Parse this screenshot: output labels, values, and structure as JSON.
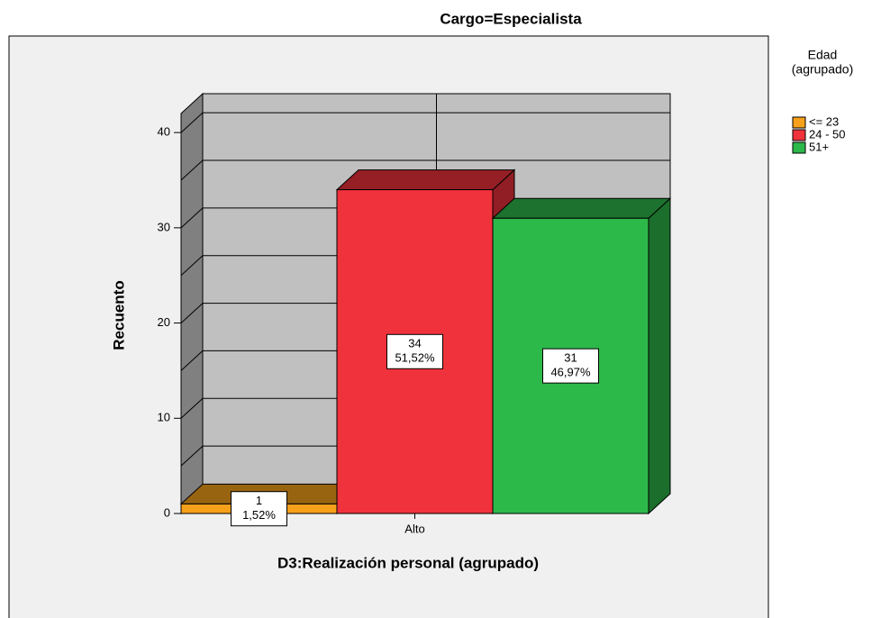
{
  "chart_data": {
    "type": "bar3d",
    "title": "Cargo=Especialista",
    "x_label": "D3:Realización personal (agrupado)",
    "y_label": "Recuento",
    "categories": [
      "Alto"
    ],
    "legend_title": [
      "Edad",
      "(agrupado)"
    ],
    "series": [
      {
        "name": "<= 23",
        "color": "#f7a11a",
        "values": [
          1
        ],
        "percent_labels": [
          "1,52%"
        ]
      },
      {
        "name": "24 - 50",
        "color": "#f0323c",
        "values": [
          34
        ],
        "percent_labels": [
          "51,52%"
        ]
      },
      {
        "name": "51+",
        "color": "#2db84a",
        "values": [
          31
        ],
        "percent_labels": [
          "46,97%"
        ]
      }
    ],
    "ylim": [
      0,
      42
    ],
    "yticks": [
      0,
      10,
      20,
      30,
      40
    ],
    "minor_yticks": [
      5,
      15,
      25,
      35
    ],
    "grid": true
  }
}
